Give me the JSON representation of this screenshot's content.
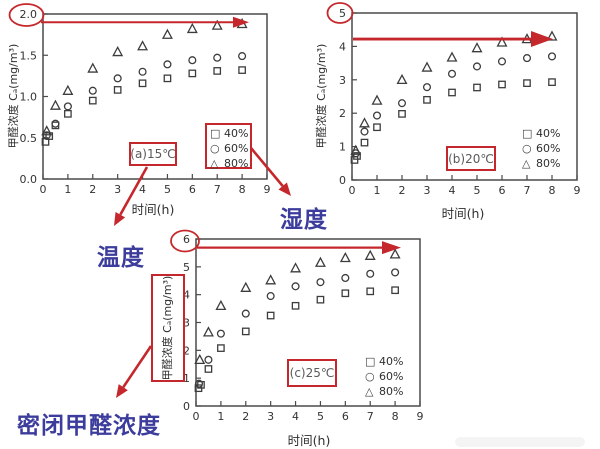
{
  "figure": {
    "x_axis_label": "时间(h)",
    "y_axis_label": "甲醛浓度 Cₐ(mg/m³)",
    "legend": {
      "markers": [
        "□",
        "○",
        "△"
      ],
      "labels": [
        "40%",
        "60%",
        "80%"
      ]
    },
    "colors": {
      "annotation_red": "#c5282c",
      "annotation_blue": "#3c3c9c",
      "marker_gray": "#3d3d3d",
      "axis_gray": "#4a4a4a"
    }
  },
  "annotations": {
    "temperature_label": "温度",
    "humidity_label": "湿度",
    "sealed_concentration_label": "密闭甲醛浓度",
    "circled_y_ticks": {
      "a": "2.0",
      "b": "5",
      "c": "6"
    }
  },
  "chart_data": [
    {
      "id": "a",
      "type": "scatter",
      "title": "(a)15℃",
      "xlabel": "时间(h)",
      "ylabel": "甲醛浓度 Cₐ(mg/m³)",
      "xlim": [
        0,
        9
      ],
      "ylim": [
        0,
        2
      ],
      "x_ticks": [
        "0",
        "1",
        "2",
        "3",
        "4",
        "5",
        "6",
        "7",
        "8",
        "9"
      ],
      "y_ticks": [
        "0.0",
        "0.5",
        "1.0",
        "1.5",
        "2.0"
      ],
      "arrow_y_value": 1.9,
      "legend_position": "lower-right-boxed",
      "series": [
        {
          "name": "40%",
          "marker": "square",
          "points": [
            [
              0.1,
              0.45
            ],
            [
              0.25,
              0.52
            ],
            [
              0.5,
              0.65
            ],
            [
              1,
              0.79
            ],
            [
              2,
              0.95
            ],
            [
              3,
              1.08
            ],
            [
              4,
              1.16
            ],
            [
              5,
              1.22
            ],
            [
              6,
              1.28
            ],
            [
              7,
              1.31
            ],
            [
              8,
              1.32
            ]
          ]
        },
        {
          "name": "60%",
          "marker": "circle",
          "points": [
            [
              0.15,
              0.53
            ],
            [
              0.5,
              0.67
            ],
            [
              1,
              0.88
            ],
            [
              2,
              1.07
            ],
            [
              3,
              1.22
            ],
            [
              4,
              1.3
            ],
            [
              5,
              1.39
            ],
            [
              6,
              1.44
            ],
            [
              7,
              1.47
            ],
            [
              8,
              1.49
            ]
          ]
        },
        {
          "name": "80%",
          "marker": "triangle",
          "points": [
            [
              0.15,
              0.58
            ],
            [
              0.5,
              0.89
            ],
            [
              1,
              1.07
            ],
            [
              2,
              1.34
            ],
            [
              3,
              1.54
            ],
            [
              4,
              1.61
            ],
            [
              5,
              1.75
            ],
            [
              6,
              1.82
            ],
            [
              7,
              1.86
            ],
            [
              8,
              1.88
            ]
          ]
        }
      ]
    },
    {
      "id": "b",
      "type": "scatter",
      "title": "(b)20℃",
      "xlabel": "时间(h)",
      "ylabel": "甲醛浓度 Cₐ(mg/m³)",
      "xlim": [
        0,
        9
      ],
      "ylim": [
        0,
        5
      ],
      "x_ticks": [
        "0",
        "1",
        "2",
        "3",
        "4",
        "5",
        "6",
        "7",
        "8",
        "9"
      ],
      "y_ticks": [
        "0",
        "1",
        "2",
        "3",
        "4",
        "5"
      ],
      "arrow_y_value": 4.22,
      "legend_position": "lower-right",
      "series": [
        {
          "name": "40%",
          "marker": "square",
          "points": [
            [
              0.1,
              0.6
            ],
            [
              0.2,
              0.72
            ],
            [
              0.5,
              1.12
            ],
            [
              1,
              1.58
            ],
            [
              2,
              1.98
            ],
            [
              3,
              2.4
            ],
            [
              4,
              2.62
            ],
            [
              5,
              2.77
            ],
            [
              6,
              2.86
            ],
            [
              7,
              2.9
            ],
            [
              8,
              2.93
            ]
          ]
        },
        {
          "name": "60%",
          "marker": "circle",
          "points": [
            [
              0.15,
              0.8
            ],
            [
              0.5,
              1.45
            ],
            [
              1,
              1.93
            ],
            [
              2,
              2.3
            ],
            [
              3,
              2.78
            ],
            [
              4,
              3.18
            ],
            [
              5,
              3.4
            ],
            [
              6,
              3.55
            ],
            [
              7,
              3.65
            ],
            [
              8,
              3.7
            ]
          ]
        },
        {
          "name": "80%",
          "marker": "triangle",
          "points": [
            [
              0.15,
              0.88
            ],
            [
              0.5,
              1.7
            ],
            [
              1,
              2.38
            ],
            [
              2,
              3.0
            ],
            [
              3,
              3.37
            ],
            [
              4,
              3.67
            ],
            [
              5,
              3.95
            ],
            [
              6,
              4.12
            ],
            [
              7,
              4.22
            ],
            [
              8,
              4.3
            ]
          ]
        }
      ]
    },
    {
      "id": "c",
      "type": "scatter",
      "title": "(c)25℃",
      "xlabel": "时间(h)",
      "ylabel": "甲醛浓度 Cₐ(mg/m³)",
      "xlim": [
        0,
        9
      ],
      "ylim": [
        0,
        6
      ],
      "x_ticks": [
        "0",
        "1",
        "2",
        "3",
        "4",
        "5",
        "6",
        "7",
        "8",
        "9"
      ],
      "y_ticks": [
        "0",
        "1",
        "2",
        "3",
        "4",
        "5",
        "6"
      ],
      "arrow_y_value": 5.69,
      "legend_position": "lower-right",
      "series": [
        {
          "name": "40%",
          "marker": "square",
          "points": [
            [
              0.1,
              0.64
            ],
            [
              0.2,
              0.76
            ],
            [
              0.5,
              1.33
            ],
            [
              1,
              2.08
            ],
            [
              2,
              2.68
            ],
            [
              3,
              3.25
            ],
            [
              4,
              3.6
            ],
            [
              5,
              3.82
            ],
            [
              6,
              4.05
            ],
            [
              7,
              4.12
            ],
            [
              8,
              4.16
            ]
          ]
        },
        {
          "name": "60%",
          "marker": "circle",
          "points": [
            [
              0.12,
              0.8
            ],
            [
              0.5,
              1.66
            ],
            [
              1,
              2.6
            ],
            [
              2,
              3.32
            ],
            [
              3,
              3.95
            ],
            [
              4,
              4.3
            ],
            [
              5,
              4.45
            ],
            [
              6,
              4.6
            ],
            [
              7,
              4.75
            ],
            [
              8,
              4.8
            ]
          ]
        },
        {
          "name": "80%",
          "marker": "triangle",
          "points": [
            [
              0.15,
              1.66
            ],
            [
              0.5,
              2.65
            ],
            [
              1,
              3.6
            ],
            [
              2,
              4.25
            ],
            [
              3,
              4.52
            ],
            [
              4,
              4.95
            ],
            [
              5,
              5.15
            ],
            [
              6,
              5.32
            ],
            [
              7,
              5.4
            ],
            [
              8,
              5.45
            ]
          ]
        }
      ]
    }
  ]
}
